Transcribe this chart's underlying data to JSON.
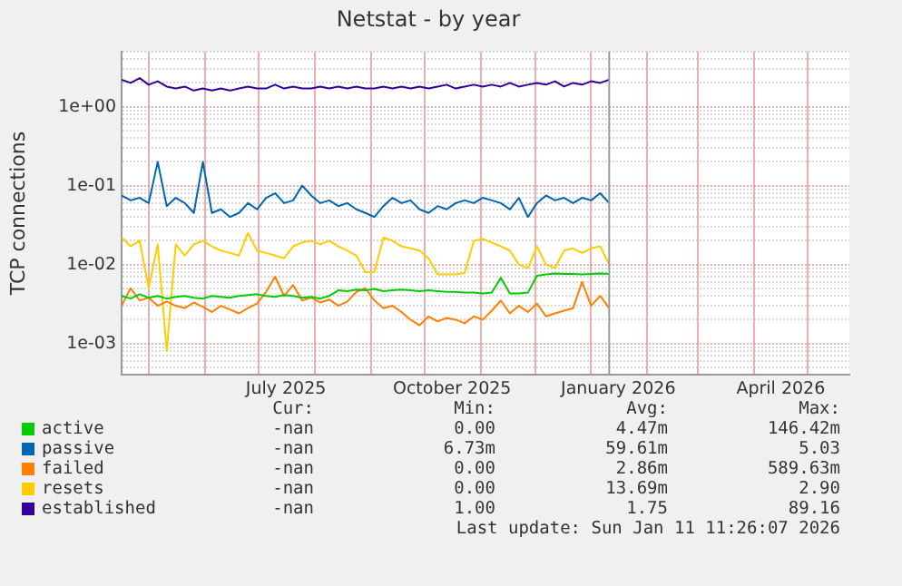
{
  "chart_data": {
    "type": "line",
    "title": "Netstat - by year",
    "ylabel": "TCP connections",
    "log": true,
    "grid": true,
    "legend": "bottom",
    "marker": "none",
    "xlim": [
      "2025-04-16",
      "2026-05-24"
    ],
    "xticks": [
      {
        "value": "2025-05-01",
        "label": null
      },
      {
        "value": "2025-06-01",
        "label": null
      },
      {
        "value": "2025-07-01",
        "label": null
      },
      {
        "value": "2025-07-16",
        "label": "July 2025"
      },
      {
        "value": "2025-08-01",
        "label": null
      },
      {
        "value": "2025-09-01",
        "label": null
      },
      {
        "value": "2025-10-01",
        "label": null
      },
      {
        "value": "2025-10-16",
        "label": "October 2025"
      },
      {
        "value": "2025-11-01",
        "label": null
      },
      {
        "value": "2025-12-01",
        "label": null
      },
      {
        "value": "2026-01-01",
        "label": null
      },
      {
        "value": "2026-01-16",
        "label": "January 2026"
      },
      {
        "value": "2026-02-01",
        "label": null
      },
      {
        "value": "2026-03-01",
        "label": null
      },
      {
        "value": "2026-04-01",
        "label": null
      },
      {
        "value": "2026-04-16",
        "label": "April 2026"
      },
      {
        "value": "2026-05-01",
        "label": null
      }
    ],
    "ylim": [
      0.0004,
      5
    ],
    "yticks": [
      {
        "value": 0.0005,
        "label": null
      },
      {
        "value": 0.0006,
        "label": null
      },
      {
        "value": 0.0007,
        "label": null
      },
      {
        "value": 0.0008,
        "label": null
      },
      {
        "value": 0.0009,
        "label": null
      },
      {
        "value": 0.001,
        "label": "1e-03"
      },
      {
        "value": 0.002,
        "label": null
      },
      {
        "value": 0.003,
        "label": null
      },
      {
        "value": 0.004,
        "label": null
      },
      {
        "value": 0.005,
        "label": null
      },
      {
        "value": 0.006,
        "label": null
      },
      {
        "value": 0.007,
        "label": null
      },
      {
        "value": 0.008,
        "label": null
      },
      {
        "value": 0.009,
        "label": null
      },
      {
        "value": 0.01,
        "label": "1e-02"
      },
      {
        "value": 0.02,
        "label": null
      },
      {
        "value": 0.03,
        "label": null
      },
      {
        "value": 0.04,
        "label": null
      },
      {
        "value": 0.05,
        "label": null
      },
      {
        "value": 0.06,
        "label": null
      },
      {
        "value": 0.07,
        "label": null
      },
      {
        "value": 0.08,
        "label": null
      },
      {
        "value": 0.09,
        "label": null
      },
      {
        "value": 0.1,
        "label": "1e-01"
      },
      {
        "value": 0.2,
        "label": null
      },
      {
        "value": 0.3,
        "label": null
      },
      {
        "value": 0.4,
        "label": null
      },
      {
        "value": 0.5,
        "label": null
      },
      {
        "value": 0.6,
        "label": null
      },
      {
        "value": 0.7,
        "label": null
      },
      {
        "value": 0.8,
        "label": null
      },
      {
        "value": 0.9,
        "label": null
      },
      {
        "value": 1,
        "label": "1e+00"
      },
      {
        "value": 2,
        "label": null
      },
      {
        "value": 3,
        "label": null
      },
      {
        "value": 4,
        "label": null
      },
      {
        "value": 5,
        "label": null
      }
    ],
    "ref_lines": [
      {
        "axis": "x",
        "value": "2026-01-11",
        "color": "#999999"
      }
    ],
    "x": [
      "2025-04-16",
      "2025-04-21",
      "2025-04-26",
      "2025-05-01",
      "2025-05-06",
      "2025-05-11",
      "2025-05-16",
      "2025-05-21",
      "2025-05-26",
      "2025-05-31",
      "2025-06-05",
      "2025-06-10",
      "2025-06-15",
      "2025-06-20",
      "2025-06-25",
      "2025-06-30",
      "2025-07-05",
      "2025-07-10",
      "2025-07-15",
      "2025-07-20",
      "2025-07-25",
      "2025-07-30",
      "2025-08-04",
      "2025-08-09",
      "2025-08-14",
      "2025-08-19",
      "2025-08-24",
      "2025-08-29",
      "2025-09-03",
      "2025-09-08",
      "2025-09-13",
      "2025-09-18",
      "2025-09-23",
      "2025-09-28",
      "2025-10-03",
      "2025-10-08",
      "2025-10-13",
      "2025-10-18",
      "2025-10-23",
      "2025-10-28",
      "2025-11-02",
      "2025-11-07",
      "2025-11-12",
      "2025-11-17",
      "2025-11-22",
      "2025-11-27",
      "2025-12-02",
      "2025-12-07",
      "2025-12-12",
      "2025-12-17",
      "2025-12-22",
      "2025-12-27",
      "2026-01-01",
      "2026-01-06",
      "2026-01-11"
    ],
    "series": [
      {
        "name": "active",
        "color": "#00cc00",
        "values": [
          0.004,
          0.0037,
          0.0042,
          0.0038,
          0.004,
          0.0037,
          0.0039,
          0.004,
          0.0038,
          0.0037,
          0.004,
          0.0039,
          0.0038,
          0.004,
          0.0041,
          0.0042,
          0.004,
          0.0039,
          0.0041,
          0.004,
          0.0038,
          0.0039,
          0.0037,
          0.004,
          0.0047,
          0.0046,
          0.0048,
          0.0047,
          0.0049,
          0.0046,
          0.0047,
          0.0048,
          0.0047,
          0.0046,
          0.0047,
          0.0046,
          0.0045,
          0.0045,
          0.0044,
          0.0044,
          0.0043,
          0.0044,
          0.0068,
          0.0043,
          0.0043,
          0.0044,
          0.0072,
          0.0075,
          0.0077,
          0.0076,
          0.0076,
          0.0075,
          0.0076,
          0.0077,
          0.0076
        ]
      },
      {
        "name": "passive",
        "color": "#0066b3",
        "values": [
          0.075,
          0.065,
          0.07,
          0.06,
          0.2,
          0.055,
          0.07,
          0.06,
          0.045,
          0.2,
          0.045,
          0.05,
          0.04,
          0.045,
          0.06,
          0.05,
          0.07,
          0.08,
          0.06,
          0.065,
          0.1,
          0.075,
          0.06,
          0.065,
          0.055,
          0.06,
          0.05,
          0.045,
          0.04,
          0.055,
          0.07,
          0.06,
          0.065,
          0.05,
          0.045,
          0.055,
          0.05,
          0.06,
          0.065,
          0.06,
          0.07,
          0.065,
          0.06,
          0.05,
          0.07,
          0.04,
          0.06,
          0.075,
          0.065,
          0.07,
          0.06,
          0.07,
          0.065,
          0.08,
          0.06
        ]
      },
      {
        "name": "failed",
        "color": "#ff8000",
        "values": [
          0.003,
          0.005,
          0.0035,
          0.0038,
          0.003,
          0.0034,
          0.003,
          0.0028,
          0.0033,
          0.0029,
          0.0025,
          0.003,
          0.0027,
          0.0024,
          0.0028,
          0.0032,
          0.0045,
          0.007,
          0.004,
          0.0055,
          0.0035,
          0.0038,
          0.0033,
          0.0036,
          0.003,
          0.0034,
          0.0045,
          0.005,
          0.0035,
          0.0028,
          0.003,
          0.0025,
          0.002,
          0.0017,
          0.0022,
          0.0019,
          0.0021,
          0.002,
          0.0018,
          0.0022,
          0.002,
          0.0026,
          0.0035,
          0.0024,
          0.003,
          0.0025,
          0.0032,
          0.0022,
          0.0024,
          0.0026,
          0.0028,
          0.006,
          0.003,
          0.004,
          0.0028
        ]
      },
      {
        "name": "resets",
        "color": "#ffcc00",
        "values": [
          0.022,
          0.017,
          0.02,
          0.005,
          0.018,
          0.0008,
          0.018,
          0.013,
          0.018,
          0.02,
          0.017,
          0.015,
          0.014,
          0.013,
          0.025,
          0.015,
          0.014,
          0.013,
          0.012,
          0.017,
          0.019,
          0.02,
          0.018,
          0.02,
          0.017,
          0.015,
          0.013,
          0.008,
          0.008,
          0.022,
          0.02,
          0.017,
          0.016,
          0.015,
          0.012,
          0.0075,
          0.0075,
          0.0075,
          0.0078,
          0.02,
          0.021,
          0.019,
          0.017,
          0.015,
          0.01,
          0.009,
          0.017,
          0.01,
          0.009,
          0.015,
          0.016,
          0.014,
          0.016,
          0.017,
          0.01
        ]
      },
      {
        "name": "established",
        "color": "#330099",
        "values": [
          2.2,
          2.0,
          2.3,
          1.9,
          2.1,
          1.8,
          1.7,
          1.8,
          1.6,
          1.7,
          1.6,
          1.7,
          1.6,
          1.7,
          1.8,
          1.7,
          1.7,
          1.9,
          1.7,
          1.8,
          1.7,
          1.7,
          1.8,
          1.7,
          1.8,
          1.7,
          1.8,
          1.7,
          1.7,
          1.8,
          1.7,
          1.8,
          1.7,
          1.8,
          1.7,
          1.8,
          1.9,
          1.7,
          1.8,
          1.9,
          1.8,
          1.9,
          1.8,
          2.0,
          1.8,
          1.9,
          2.0,
          1.9,
          2.1,
          1.8,
          2.0,
          1.9,
          2.1,
          2.0,
          2.2
        ]
      }
    ],
    "annotations": [
      "Cur:",
      "Min:",
      "Avg:",
      "Max:",
      "-nan",
      "0.00",
      "4.47m",
      "146.42m",
      "-nan",
      "6.73m",
      "59.61m",
      "5.03",
      "-nan",
      "0.00",
      "2.86m",
      "589.63m",
      "-nan",
      "0.00",
      "13.69m",
      "2.90",
      "-nan",
      "1.00",
      "1.75",
      "89.16",
      "Last update: Sun Jan 11 11:26:07 2026"
    ]
  }
}
